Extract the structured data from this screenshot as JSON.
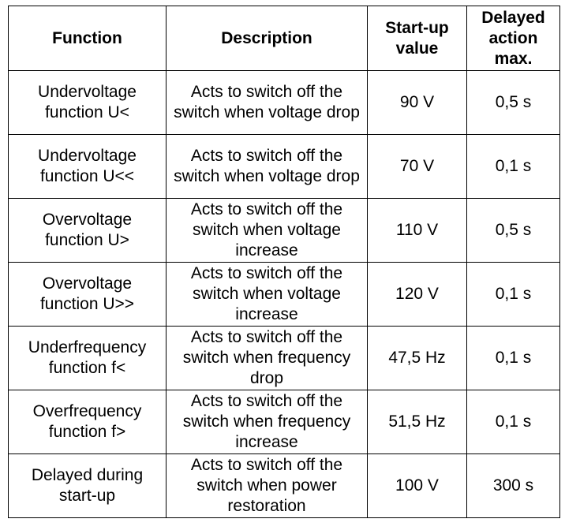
{
  "table": {
    "headers": {
      "function": "Function",
      "description": "Description",
      "startup_value": "Start-up value",
      "delayed_action": "Delayed action max."
    },
    "rows": [
      {
        "function": "Undervoltage function U<",
        "description": "Acts to switch off the switch when voltage drop",
        "startup_value": "90 V",
        "delayed_action": "0,5 s"
      },
      {
        "function": "Undervoltage function U<<",
        "description": "Acts to switch off the switch when voltage drop",
        "startup_value": "70 V",
        "delayed_action": "0,1 s"
      },
      {
        "function": "Overvoltage function U>",
        "description": "Acts to switch off the switch when voltage increase",
        "startup_value": "110 V",
        "delayed_action": "0,5 s"
      },
      {
        "function": "Overvoltage function U>>",
        "description": "Acts to switch off the switch when voltage increase",
        "startup_value": "120 V",
        "delayed_action": "0,1 s"
      },
      {
        "function": "Underfrequency function f<",
        "description": "Acts to switch off the switch when frequency drop",
        "startup_value": "47,5 Hz",
        "delayed_action": "0,1 s"
      },
      {
        "function": "Overfrequency function f>",
        "description": "Acts to switch off the switch when frequency increase",
        "startup_value": "51,5 Hz",
        "delayed_action": "0,1 s"
      },
      {
        "function": "Delayed during start-up",
        "description": "Acts to switch off the switch when power restoration",
        "startup_value": "100 V",
        "delayed_action": "300 s"
      }
    ]
  }
}
